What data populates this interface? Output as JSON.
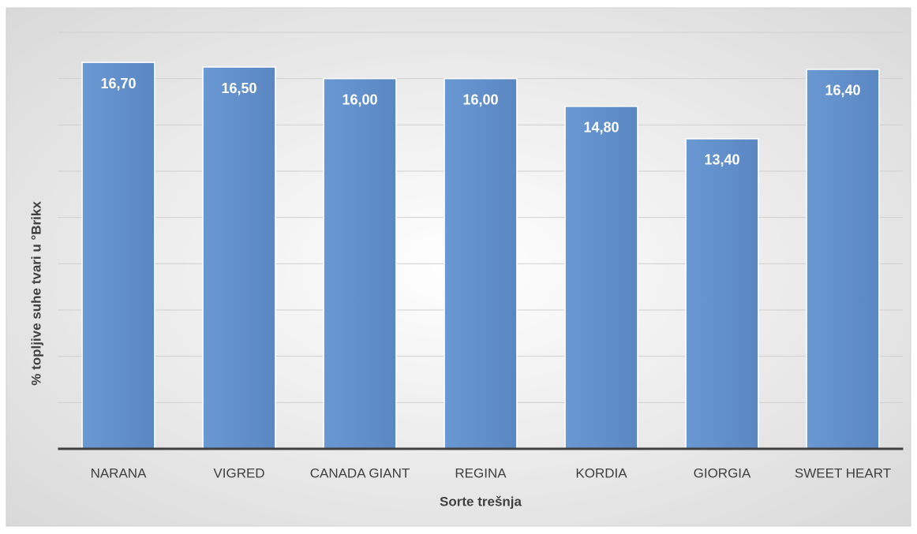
{
  "chart_data": {
    "type": "bar",
    "x_label": "Sorte trešnja",
    "y_label": "% topljive suhe tvari u °Brikx",
    "categories": [
      "NARANA",
      "VIGRED",
      "CANADA GIANT",
      "REGINA",
      "KORDIA",
      "GIORGIA",
      "SWEET HEART"
    ],
    "values": [
      16.7,
      16.5,
      16.0,
      16.0,
      14.8,
      13.4,
      16.4
    ],
    "value_labels": [
      "16,70",
      "16,50",
      "16,00",
      "16,00",
      "14,80",
      "13,40",
      "16,40"
    ],
    "color": "#5f8fcb",
    "ylim": [
      0,
      18
    ],
    "yticks": [
      0,
      2,
      4,
      6,
      8,
      10,
      12,
      14,
      16,
      18
    ],
    "grid": true
  }
}
